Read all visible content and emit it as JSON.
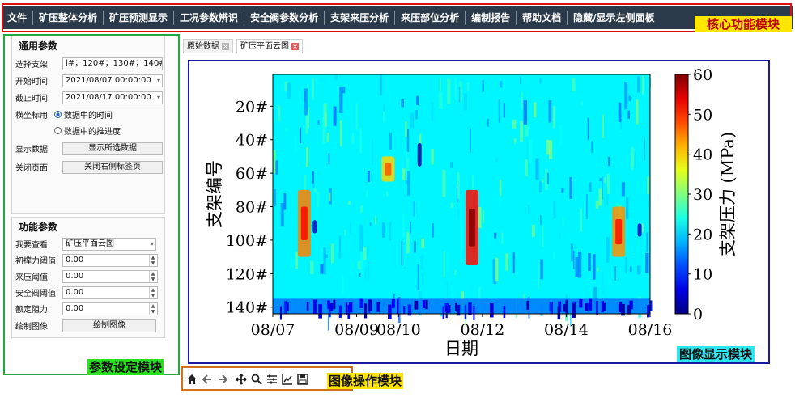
{
  "menu": {
    "items": [
      "文件",
      "矿压整体分析",
      "矿压预测显示",
      "工况参数辨识",
      "安全阀参数分析",
      "支架来压分析",
      "来压部位分析",
      "编制报告",
      "帮助文档",
      "隐藏/显示左侧面板"
    ]
  },
  "annotations": {
    "core": "核心功能模块",
    "params": "参数设定模块",
    "image": "图像显示模块",
    "ops": "图像操作模块"
  },
  "general_params": {
    "title": "通用参数",
    "support_label": "选择支架",
    "support_value": "l#；120#；130#；140#",
    "start_label": "开始时间",
    "start_value": "2021/08/07 00:00:00",
    "end_label": "截止时间",
    "end_value": "2021/08/17 00:00:00",
    "xaxis_label": "横坐标用",
    "radio_time": "数据中的时间",
    "radio_progress": "数据中的推进度",
    "show_label": "显示数据",
    "show_button": "显示所选数据",
    "close_label": "关闭页面",
    "close_button": "关闭右侧标签页"
  },
  "function_params": {
    "title": "功能参数",
    "view_label": "我要查看",
    "view_value": "矿压平面云图",
    "init_label": "初撑力阈值",
    "init_value": "0.00",
    "press_label": "来压阈值",
    "press_value": "0.00",
    "valve_label": "安全阀阈值",
    "valve_value": "0.00",
    "rated_label": "额定阻力",
    "rated_value": "0.00",
    "draw_label": "绘制图像",
    "draw_button": "绘制图像"
  },
  "tabs": [
    {
      "label": "原始数据",
      "active": false
    },
    {
      "label": "矿压平面云图",
      "active": true
    }
  ],
  "toolbar": {
    "icons": [
      "home-icon",
      "back-arrow-icon",
      "forward-arrow-icon",
      "pan-icon",
      "zoom-icon",
      "configure-subplots-icon",
      "edit-axis-icon",
      "save-icon"
    ]
  },
  "colors": {
    "menubar": "#2b3a4a",
    "core_frame": "#e01010",
    "params_frame": "#1fa845",
    "image_frame": "#1a1aa0",
    "ops_frame": "#d0701a"
  },
  "chart_data": {
    "type": "heatmap",
    "colormap": "jet",
    "xlabel": "日期",
    "ylabel": "支架编号",
    "colorbar_label": "支架压力 (MPa)",
    "x_ticks": [
      "08/07",
      "08/09",
      "08/10",
      "08/12",
      "08/14",
      "08/16"
    ],
    "x_range": [
      "2021/08/07",
      "2021/08/16"
    ],
    "y_ticks": [
      "20#",
      "40#",
      "60#",
      "80#",
      "100#",
      "120#",
      "140#"
    ],
    "y_range": [
      1,
      144
    ],
    "colorbar_range": [
      0,
      60
    ],
    "colorbar_ticks": [
      0,
      10,
      20,
      30,
      40,
      50,
      60
    ],
    "background_value": 22,
    "features": [
      {
        "desc": "high pressure band",
        "x": "2021/08/07 18:00",
        "y_range": [
          70,
          110
        ],
        "value": 45
      },
      {
        "desc": "high pressure band",
        "x": "2021/08/11 18:00",
        "y_range": [
          70,
          115
        ],
        "value": 52
      },
      {
        "desc": "high pressure band",
        "x": "2021/08/09 18:00",
        "y_range": [
          50,
          65
        ],
        "value": 40
      },
      {
        "desc": "high pressure band",
        "x": "2021/08/15 06:00",
        "y_range": [
          80,
          110
        ],
        "value": 44
      },
      {
        "desc": "low pressure strip",
        "y_range": [
          135,
          144
        ],
        "value": 6
      },
      {
        "desc": "low pressure spot",
        "x": "2021/08/10 12:00",
        "y_range": [
          42,
          56
        ],
        "value": 2
      },
      {
        "desc": "low pressure spot",
        "x": "2021/08/08 00:00",
        "y_range": [
          88,
          96
        ],
        "value": 4
      },
      {
        "desc": "low pressure spot",
        "x": "2021/08/15 18:00",
        "y_range": [
          90,
          98
        ],
        "value": 4
      }
    ]
  }
}
